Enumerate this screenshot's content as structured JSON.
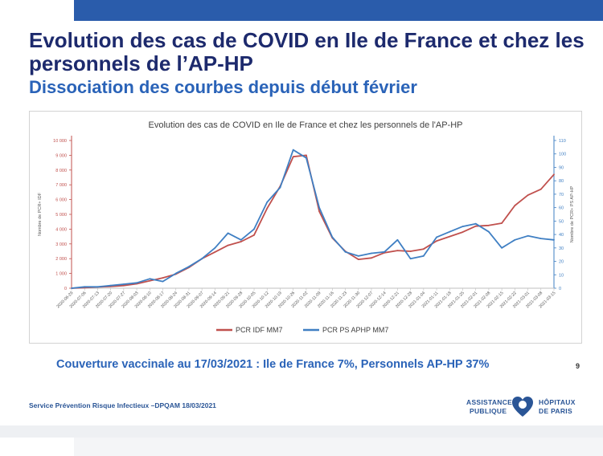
{
  "slide": {
    "title": "Evolution des cas de COVID en Ile de France et chez les personnels de l’AP-HP",
    "subtitle": "Dissociation des courbes depuis début février",
    "coverage": "Couverture vaccinale au 17/03/2021 : Ile de France 7%, Personnels AP-HP 37%",
    "page_number": "9",
    "footer": "Service Prévention Risque Infectieux –DPQAM 18/03/2021",
    "logo_line1_left": "ASSISTANCE",
    "logo_line2_left": "PUBLIQUE",
    "logo_line1_right": "HÔPITAUX",
    "logo_line2_right": "DE PARIS"
  },
  "colors": {
    "title": "#1d2a6d",
    "subtitle": "#2a63b8",
    "idf": "#c0504d",
    "aphp": "#3f7fc3",
    "topbar": "#2a5cab"
  },
  "chart_data": {
    "type": "line",
    "title": "Evolution des cas de COVID en Ile de France et chez les personnels de l'AP-HP",
    "ylabel": "Nombre de PCR+ IDF",
    "y2label": "Nombre de PCR+ PS AP-HP",
    "ylim": [
      0,
      10000
    ],
    "y2lim": [
      0,
      110
    ],
    "yticks": [
      "0",
      "1 000",
      "2 000",
      "3 000",
      "4 000",
      "5 000",
      "6 000",
      "7 000",
      "8 000",
      "9 000",
      "10 000"
    ],
    "y2ticks": [
      "0",
      "10",
      "20",
      "30",
      "40",
      "50",
      "60",
      "70",
      "80",
      "90",
      "100",
      "110"
    ],
    "x_tick_labels": [
      "2020-06-29",
      "2020-07-06",
      "2020-07-13",
      "2020-07-20",
      "2020-07-27",
      "2020-08-03",
      "2020-08-10",
      "2020-08-17",
      "2020-08-24",
      "2020-08-31",
      "2020-09-07",
      "2020-09-14",
      "2020-09-21",
      "2020-09-28",
      "2020-10-05",
      "2020-10-12",
      "2020-10-19",
      "2020-10-26",
      "2020-11-02",
      "2020-11-09",
      "2020-11-16",
      "2020-11-23",
      "2020-11-30",
      "2020-12-07",
      "2020-12-14",
      "2020-12-21",
      "2020-12-28",
      "2021-01-04",
      "2021-01-11",
      "2021-01-18",
      "2021-01-25",
      "2021-02-01",
      "2021-02-08",
      "2021-02-15",
      "2021-02-22",
      "2021-03-01",
      "2021-03-08",
      "2021-03-15"
    ],
    "series": [
      {
        "name": "PCR IDF MM7",
        "axis": "left",
        "values": [
          0,
          40,
          80,
          120,
          180,
          300,
          500,
          700,
          950,
          1400,
          2000,
          2450,
          2900,
          3150,
          3600,
          5400,
          6900,
          8900,
          9000,
          5200,
          3400,
          2500,
          1950,
          2050,
          2400,
          2550,
          2500,
          2650,
          3200,
          3500,
          3800,
          4200,
          4250,
          4400,
          5600,
          6300,
          6700,
          7700
        ]
      },
      {
        "name": "PCR PS APHP MM7",
        "axis": "right",
        "values": [
          0,
          1,
          1,
          2,
          3,
          4,
          7,
          5,
          11,
          16,
          22,
          30,
          41,
          36,
          44,
          64,
          75,
          103,
          97,
          60,
          38,
          27,
          24,
          26,
          27,
          36,
          22,
          24,
          38,
          42,
          46,
          48,
          42,
          30,
          36,
          39,
          37,
          36
        ]
      }
    ],
    "legend": "bottom"
  }
}
